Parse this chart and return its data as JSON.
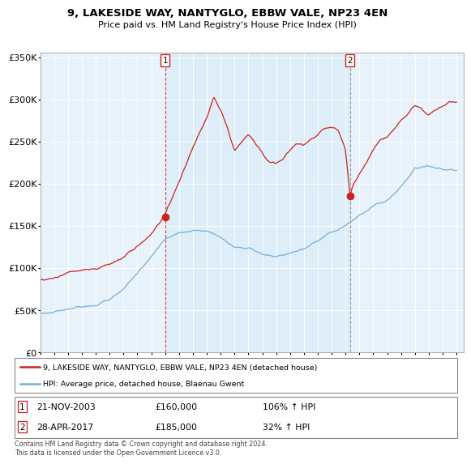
{
  "title": "9, LAKESIDE WAY, NANTYGLO, EBBW VALE, NP23 4EN",
  "subtitle": "Price paid vs. HM Land Registry's House Price Index (HPI)",
  "legend_line1": "9, LAKESIDE WAY, NANTYGLO, EBBW VALE, NP23 4EN (detached house)",
  "legend_line2": "HPI: Average price, detached house, Blaenau Gwent",
  "sale1_date": "21-NOV-2003",
  "sale1_price": 160000,
  "sale1_price_str": "£160,000",
  "sale1_hpi": "106% ↑ HPI",
  "sale2_date": "28-APR-2017",
  "sale2_price": 185000,
  "sale2_price_str": "£185,000",
  "sale2_hpi": "32% ↑ HPI",
  "footer": "Contains HM Land Registry data © Crown copyright and database right 2024.\nThis data is licensed under the Open Government Licence v3.0.",
  "hpi_color": "#7aadd4",
  "price_color": "#cc2222",
  "vline1_color": "#cc2222",
  "vline2_color": "#888888",
  "bg_highlight": "#ddeef8",
  "bg_normal": "#e8f2fa",
  "yticks": [
    0,
    50000,
    100000,
    150000,
    200000,
    250000,
    300000,
    350000
  ],
  "ytick_labels": [
    "£0",
    "£50K",
    "£100K",
    "£150K",
    "£200K",
    "£250K",
    "£300K",
    "£350K"
  ],
  "sale1_x": 2004.0,
  "sale2_x": 2017.33,
  "xlim_left": 1995.0,
  "xlim_right": 2025.5
}
